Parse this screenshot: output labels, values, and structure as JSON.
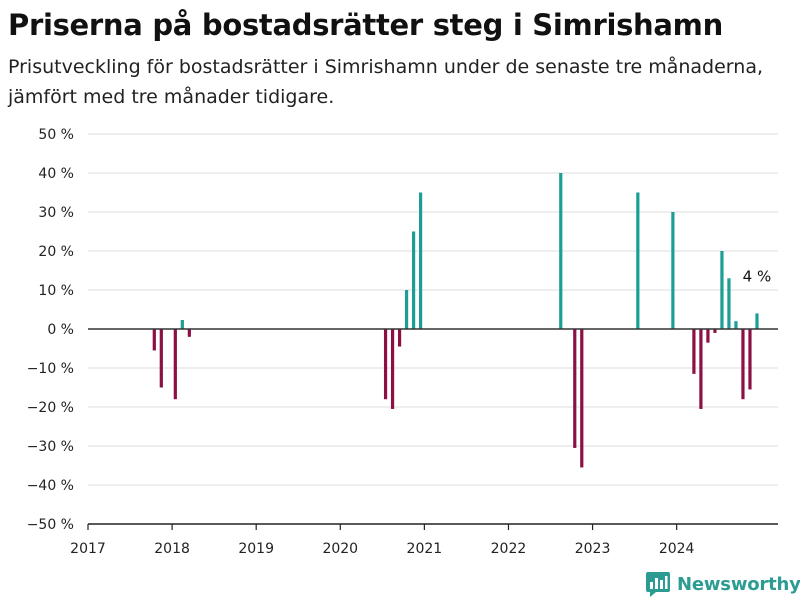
{
  "title": "Priserna på bostadsrätter steg i Simrishamn",
  "subtitle": "Prisutveckling för bostadsrätter i Simrishamn under de senaste tre månaderna, jämfört med tre månader tidigare.",
  "brand": "Newsworthy",
  "colors": {
    "positive": "#1a9e96",
    "negative": "#8c0f45",
    "zero_line": "#333333",
    "grid": "#dddddd",
    "brand": "#2c9c93"
  },
  "chart_data": {
    "type": "bar",
    "x_unit": "date",
    "y_unit": "%",
    "ylim": [
      -50,
      50
    ],
    "y_ticks": [
      50,
      40,
      30,
      20,
      10,
      0,
      -10,
      -20,
      -30,
      -40,
      -50
    ],
    "y_tick_labels": [
      "50 %",
      "40 %",
      "30 %",
      "20 %",
      "10 %",
      "0 %",
      "−10 %",
      "−20 %",
      "−30 %",
      "−40 %",
      "−50 %"
    ],
    "x_ticks": [
      "2017",
      "2018",
      "2019",
      "2020",
      "2021",
      "2022",
      "2023",
      "2024"
    ],
    "xlim": [
      "2017-01-01",
      "2025-03-15"
    ],
    "grid": "horizontal",
    "bars": [
      {
        "date": "2017-10",
        "value": -5.5
      },
      {
        "date": "2017-11",
        "value": -15
      },
      {
        "date": "2018-01",
        "value": -18
      },
      {
        "date": "2018-02",
        "value": 2.3
      },
      {
        "date": "2018-03",
        "value": -2
      },
      {
        "date": "2020-07",
        "value": -18
      },
      {
        "date": "2020-08",
        "value": -20.5
      },
      {
        "date": "2020-09",
        "value": -4.5
      },
      {
        "date": "2020-10",
        "value": 10
      },
      {
        "date": "2020-11",
        "value": 25
      },
      {
        "date": "2020-12",
        "value": 35
      },
      {
        "date": "2022-08",
        "value": 40
      },
      {
        "date": "2022-10",
        "value": -30.5
      },
      {
        "date": "2022-11",
        "value": -35.5
      },
      {
        "date": "2023-07",
        "value": 35
      },
      {
        "date": "2023-12",
        "value": 30
      },
      {
        "date": "2024-03",
        "value": -11.5
      },
      {
        "date": "2024-04",
        "value": -20.5
      },
      {
        "date": "2024-05",
        "value": -3.5
      },
      {
        "date": "2024-06",
        "value": -1
      },
      {
        "date": "2024-07",
        "value": 20
      },
      {
        "date": "2024-08",
        "value": 13
      },
      {
        "date": "2024-09",
        "value": 2
      },
      {
        "date": "2024-10",
        "value": -18
      },
      {
        "date": "2024-11",
        "value": -15.5
      },
      {
        "date": "2024-12",
        "value": 4
      }
    ],
    "annotation": {
      "text": "4 %",
      "date": "2024-12",
      "value": 4
    }
  }
}
